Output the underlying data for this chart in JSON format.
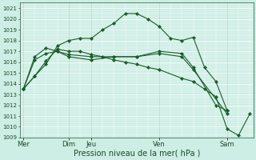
{
  "bg_color": "#cceee4",
  "plot_bg_color": "#cceee4",
  "grid_color": "#ffffff",
  "line_color": "#1a5c2a",
  "marker_color": "#1a5c2a",
  "xlabel": "Pression niveau de la mer( hPa )",
  "ylim": [
    1009,
    1021.5
  ],
  "yticks": [
    1009,
    1010,
    1011,
    1012,
    1013,
    1014,
    1015,
    1016,
    1017,
    1018,
    1019,
    1020,
    1021
  ],
  "xtick_labels": [
    "Mer",
    "Dim",
    "Jeu",
    "Ven",
    "Sam"
  ],
  "xtick_positions": [
    0,
    4,
    6,
    12,
    18
  ],
  "vline_positions": [
    0,
    4,
    6,
    12,
    18
  ],
  "series": [
    {
      "x": [
        0,
        1,
        2,
        3,
        4,
        6,
        8,
        10,
        12,
        14,
        15,
        18
      ],
      "y": [
        1013.5,
        1016.5,
        1017.3,
        1017.0,
        1016.7,
        1016.5,
        1016.5,
        1016.5,
        1016.8,
        1016.5,
        1015.3,
        1011.2
      ]
    },
    {
      "x": [
        0,
        1,
        2,
        3,
        4,
        6,
        8,
        10,
        12,
        14,
        15,
        17,
        18
      ],
      "y": [
        1013.5,
        1016.2,
        1016.8,
        1017.0,
        1016.5,
        1016.2,
        1016.5,
        1016.5,
        1017.0,
        1016.8,
        1015.5,
        1012.0,
        1011.5
      ]
    },
    {
      "x": [
        0,
        1,
        2,
        3,
        4,
        5,
        6,
        7,
        8,
        9,
        10,
        11,
        12,
        13,
        14,
        15,
        16,
        17,
        18
      ],
      "y": [
        1013.5,
        1014.7,
        1015.8,
        1017.5,
        1018.0,
        1018.2,
        1018.2,
        1019.0,
        1019.6,
        1020.5,
        1020.5,
        1020.0,
        1019.3,
        1018.2,
        1018.0,
        1018.3,
        1015.5,
        1014.2,
        1011.5
      ]
    },
    {
      "x": [
        0,
        1,
        2,
        3,
        4,
        5,
        6,
        7,
        8,
        9,
        10,
        11,
        12,
        14,
        15,
        16,
        17,
        18,
        19,
        20
      ],
      "y": [
        1013.5,
        1014.7,
        1016.1,
        1017.2,
        1017.0,
        1017.0,
        1016.7,
        1016.5,
        1016.2,
        1016.0,
        1015.8,
        1015.5,
        1015.3,
        1014.5,
        1014.2,
        1013.5,
        1012.8,
        1009.8,
        1009.2,
        1011.2
      ]
    }
  ],
  "x_max": 20,
  "xlabel_fontsize": 7,
  "ytick_fontsize": 5,
  "xtick_fontsize": 6
}
